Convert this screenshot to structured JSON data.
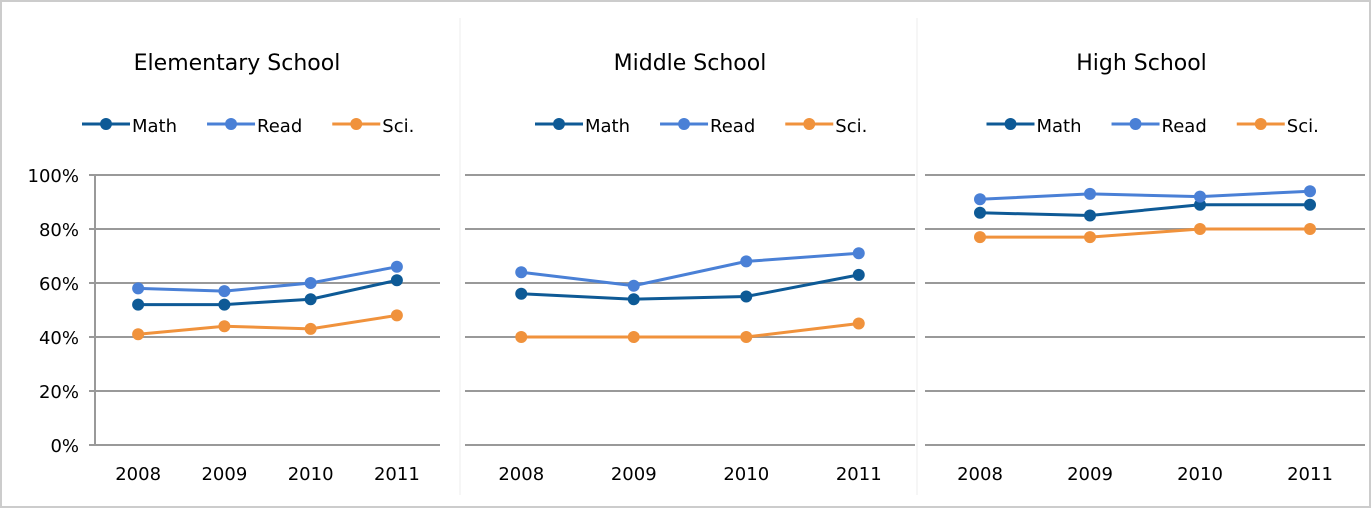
{
  "chart_data": [
    {
      "type": "line",
      "title": "Elementary School",
      "categories": [
        "2008",
        "2009",
        "2010",
        "2011"
      ],
      "series": [
        {
          "name": "Math",
          "color": "#0e5a96",
          "values": [
            52,
            52,
            54,
            61
          ]
        },
        {
          "name": "Read",
          "color": "#4a80d6",
          "values": [
            58,
            57,
            60,
            66
          ]
        },
        {
          "name": "Sci.",
          "color": "#f0923c",
          "values": [
            41,
            44,
            43,
            48
          ]
        }
      ],
      "ylim": [
        0,
        100
      ],
      "yticks": [
        {
          "value": 0,
          "label": "0%"
        },
        {
          "value": 20,
          "label": "20%"
        },
        {
          "value": 40,
          "label": "40%"
        },
        {
          "value": 60,
          "label": "60%"
        },
        {
          "value": 80,
          "label": "80%"
        },
        {
          "value": 100,
          "label": "100%"
        }
      ],
      "grid": true,
      "legend": "top"
    },
    {
      "type": "line",
      "title": "Middle School",
      "categories": [
        "2008",
        "2009",
        "2010",
        "2011"
      ],
      "series": [
        {
          "name": "Math",
          "color": "#0e5a96",
          "values": [
            56,
            54,
            55,
            63
          ]
        },
        {
          "name": "Read",
          "color": "#4a80d6",
          "values": [
            64,
            59,
            68,
            71
          ]
        },
        {
          "name": "Sci.",
          "color": "#f0923c",
          "values": [
            40,
            40,
            40,
            45
          ]
        }
      ],
      "ylim": [
        0,
        100
      ],
      "yticks": [
        0,
        20,
        40,
        60,
        80,
        100
      ],
      "grid": true,
      "legend": "top"
    },
    {
      "type": "line",
      "title": "High School",
      "categories": [
        "2008",
        "2009",
        "2010",
        "2011"
      ],
      "series": [
        {
          "name": "Math",
          "color": "#0e5a96",
          "values": [
            86,
            85,
            89,
            89
          ]
        },
        {
          "name": "Read",
          "color": "#4a80d6",
          "values": [
            91,
            93,
            92,
            94
          ]
        },
        {
          "name": "Sci.",
          "color": "#f0923c",
          "values": [
            77,
            77,
            80,
            80
          ]
        }
      ],
      "ylim": [
        0,
        100
      ],
      "yticks": [
        0,
        20,
        40,
        60,
        80,
        100
      ],
      "grid": true,
      "legend": "top"
    }
  ]
}
